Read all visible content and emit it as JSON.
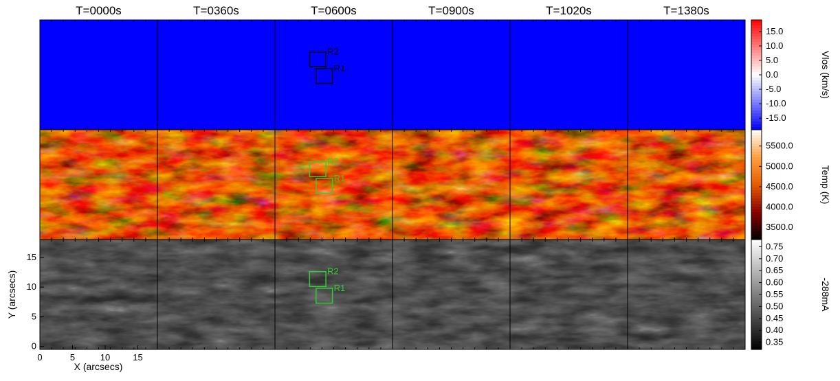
{
  "chart_data": {
    "type": "heatmap",
    "time_labels": [
      "T=0000s",
      "T=0360s",
      "T=0600s",
      "T=0900s",
      "T=1020s",
      "T=1380s"
    ],
    "rows": [
      {
        "name": "vlos",
        "colorbar_label": "Vlos (km/s)",
        "ticks": [
          "15.0",
          "10.0",
          "5.0",
          "0.0",
          "-5.0",
          "-10.0",
          "-15.0"
        ],
        "tick_values": [
          15,
          10,
          5,
          0,
          -5,
          -10,
          -15
        ],
        "range": [
          -19,
          19
        ],
        "box_color": "#000000",
        "colors": [
          "#0000ff",
          "#ffffff",
          "#ff0000"
        ]
      },
      {
        "name": "temp",
        "colorbar_label": "Temp (K)",
        "ticks": [
          "5500.0",
          "5000.0",
          "4500.0",
          "4000.0",
          "3500.0"
        ],
        "tick_values": [
          5500,
          5000,
          4500,
          4000,
          3500
        ],
        "range": [
          3200,
          5900
        ],
        "box_color": "#33cc33",
        "colors": [
          "#000000",
          "#8b0000",
          "#e65c00",
          "#ffa040",
          "#ffffff"
        ]
      },
      {
        "name": "intensity",
        "colorbar_label": "-288mA",
        "ticks": [
          "0.75",
          "0.70",
          "0.65",
          "0.60",
          "0.55",
          "0.50",
          "0.45",
          "0.40",
          "0.35"
        ],
        "tick_values": [
          0.75,
          0.7,
          0.65,
          0.6,
          0.55,
          0.5,
          0.45,
          0.4,
          0.35
        ],
        "range": [
          0.32,
          0.78
        ],
        "box_color": "#33cc33",
        "colors": [
          "#000000",
          "#ffffff"
        ]
      }
    ],
    "regions": [
      {
        "label": "R2",
        "x": [
          5.3,
          7.8
        ],
        "y": [
          10.1,
          12.6
        ]
      },
      {
        "label": "R1",
        "x": [
          6.3,
          8.8
        ],
        "y": [
          7.3,
          9.8
        ]
      }
    ],
    "region_panel": "T=0600s",
    "xlabel": "X (arcsecs)",
    "ylabel": "Y (arcsecs)",
    "xticks": [
      0,
      5,
      10,
      15
    ],
    "yticks": [
      0,
      5,
      10,
      15
    ],
    "xlim": [
      0,
      18
    ],
    "ylim": [
      -0.5,
      18
    ]
  }
}
